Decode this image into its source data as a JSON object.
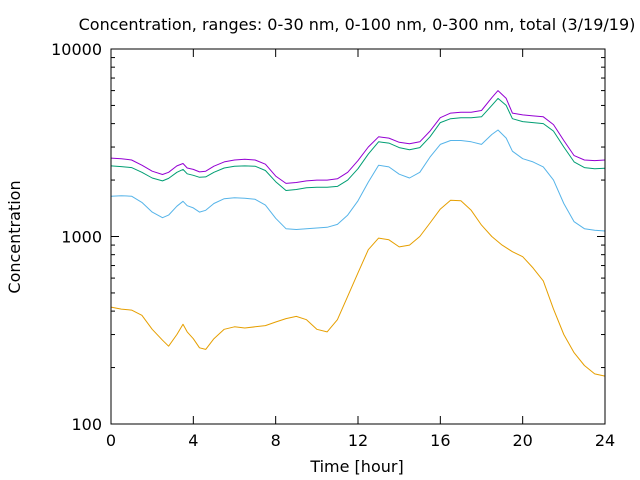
{
  "chart_data": {
    "type": "line",
    "title": "Concentration, ranges: 0-30 nm, 0-100 nm, 0-300 nm, total (3/19/19)",
    "xlabel": "Time [hour]",
    "ylabel": "Concentration",
    "xlim": [
      0,
      24
    ],
    "ylim": [
      100,
      10000
    ],
    "y_scale": "log",
    "grid": false,
    "legend": "none",
    "x_ticks": [
      0,
      4,
      8,
      12,
      16,
      20,
      24
    ],
    "y_ticks": [
      100,
      1000,
      10000
    ],
    "series": [
      {
        "color": "#e69f00",
        "x": [
          0,
          0.5,
          1,
          1.5,
          2,
          2.5,
          2.8,
          3.2,
          3.5,
          3.7,
          4.0,
          4.3,
          4.6,
          5.0,
          5.5,
          6.0,
          6.5,
          7.0,
          7.5,
          8.0,
          8.5,
          9.0,
          9.5,
          10.0,
          10.5,
          11.0,
          11.5,
          12.0,
          12.5,
          13.0,
          13.5,
          14.0,
          14.5,
          15.0,
          15.5,
          16.0,
          16.5,
          17.0,
          17.5,
          18.0,
          18.5,
          19.0,
          19.5,
          20.0,
          20.5,
          21.0,
          21.5,
          22.0,
          22.5,
          23.0,
          23.5,
          24.0
        ],
        "values": [
          420,
          410,
          405,
          380,
          320,
          280,
          260,
          300,
          340,
          310,
          285,
          255,
          250,
          285,
          320,
          330,
          325,
          330,
          335,
          350,
          365,
          375,
          360,
          320,
          310,
          360,
          480,
          640,
          850,
          980,
          960,
          880,
          900,
          1000,
          1180,
          1400,
          1560,
          1550,
          1380,
          1150,
          1000,
          900,
          830,
          780,
          680,
          580,
          410,
          300,
          240,
          205,
          185,
          180
        ]
      },
      {
        "color": "#56b4e9",
        "x": [
          0,
          0.5,
          1,
          1.5,
          2,
          2.5,
          2.8,
          3.2,
          3.5,
          3.7,
          4.0,
          4.3,
          4.6,
          5.0,
          5.5,
          6.0,
          6.5,
          7.0,
          7.5,
          8.0,
          8.5,
          9.0,
          9.5,
          10.0,
          10.5,
          11.0,
          11.5,
          12.0,
          12.5,
          13.0,
          13.5,
          14.0,
          14.5,
          15.0,
          15.5,
          16.0,
          16.5,
          17.0,
          17.5,
          18.0,
          18.5,
          18.8,
          19.2,
          19.5,
          20.0,
          20.5,
          21.0,
          21.5,
          22.0,
          22.5,
          23.0,
          23.5,
          24.0
        ],
        "values": [
          1640,
          1650,
          1640,
          1520,
          1350,
          1260,
          1300,
          1450,
          1540,
          1460,
          1420,
          1350,
          1380,
          1500,
          1590,
          1610,
          1600,
          1580,
          1470,
          1250,
          1100,
          1090,
          1100,
          1110,
          1120,
          1160,
          1300,
          1550,
          1950,
          2400,
          2350,
          2150,
          2050,
          2200,
          2650,
          3100,
          3250,
          3250,
          3200,
          3100,
          3500,
          3700,
          3350,
          2850,
          2600,
          2500,
          2350,
          2000,
          1500,
          1200,
          1100,
          1080,
          1070
        ]
      },
      {
        "color": "#009e73",
        "x": [
          0,
          0.5,
          1,
          1.5,
          2,
          2.5,
          2.8,
          3.2,
          3.5,
          3.7,
          4.0,
          4.3,
          4.6,
          5.0,
          5.5,
          6.0,
          6.5,
          7.0,
          7.5,
          8.0,
          8.5,
          9.0,
          9.5,
          10.0,
          10.5,
          11.0,
          11.5,
          12.0,
          12.5,
          13.0,
          13.5,
          14.0,
          14.5,
          15.0,
          15.5,
          16.0,
          16.5,
          17.0,
          17.5,
          18.0,
          18.5,
          18.8,
          19.2,
          19.5,
          20.0,
          20.5,
          21.0,
          21.5,
          22.0,
          22.5,
          23.0,
          23.5,
          24.0
        ],
        "values": [
          2380,
          2360,
          2330,
          2200,
          2050,
          1980,
          2040,
          2200,
          2280,
          2160,
          2120,
          2070,
          2080,
          2200,
          2320,
          2370,
          2380,
          2370,
          2250,
          1960,
          1760,
          1780,
          1820,
          1830,
          1830,
          1850,
          2000,
          2300,
          2750,
          3200,
          3150,
          2980,
          2900,
          2980,
          3400,
          4050,
          4250,
          4300,
          4300,
          4350,
          5000,
          5450,
          5000,
          4250,
          4100,
          4050,
          4000,
          3650,
          3000,
          2500,
          2330,
          2300,
          2310
        ]
      },
      {
        "color": "#9400d3",
        "x": [
          0,
          0.5,
          1,
          1.5,
          2,
          2.5,
          2.8,
          3.2,
          3.5,
          3.7,
          4.0,
          4.3,
          4.6,
          5.0,
          5.5,
          6.0,
          6.5,
          7.0,
          7.5,
          8.0,
          8.5,
          9.0,
          9.5,
          10.0,
          10.5,
          11.0,
          11.5,
          12.0,
          12.5,
          13.0,
          13.5,
          14.0,
          14.5,
          15.0,
          15.5,
          16.0,
          16.5,
          17.0,
          17.5,
          18.0,
          18.5,
          18.8,
          19.2,
          19.5,
          20.0,
          20.5,
          21.0,
          21.5,
          22.0,
          22.5,
          23.0,
          23.5,
          24.0
        ],
        "values": [
          2620,
          2600,
          2560,
          2400,
          2230,
          2140,
          2200,
          2380,
          2450,
          2320,
          2280,
          2210,
          2230,
          2370,
          2500,
          2560,
          2580,
          2560,
          2430,
          2100,
          1920,
          1940,
          1980,
          2000,
          2000,
          2030,
          2200,
          2540,
          3000,
          3400,
          3350,
          3180,
          3120,
          3200,
          3650,
          4300,
          4550,
          4600,
          4600,
          4700,
          5500,
          6000,
          5450,
          4550,
          4450,
          4400,
          4350,
          3950,
          3250,
          2700,
          2560,
          2540,
          2560
        ]
      }
    ]
  }
}
